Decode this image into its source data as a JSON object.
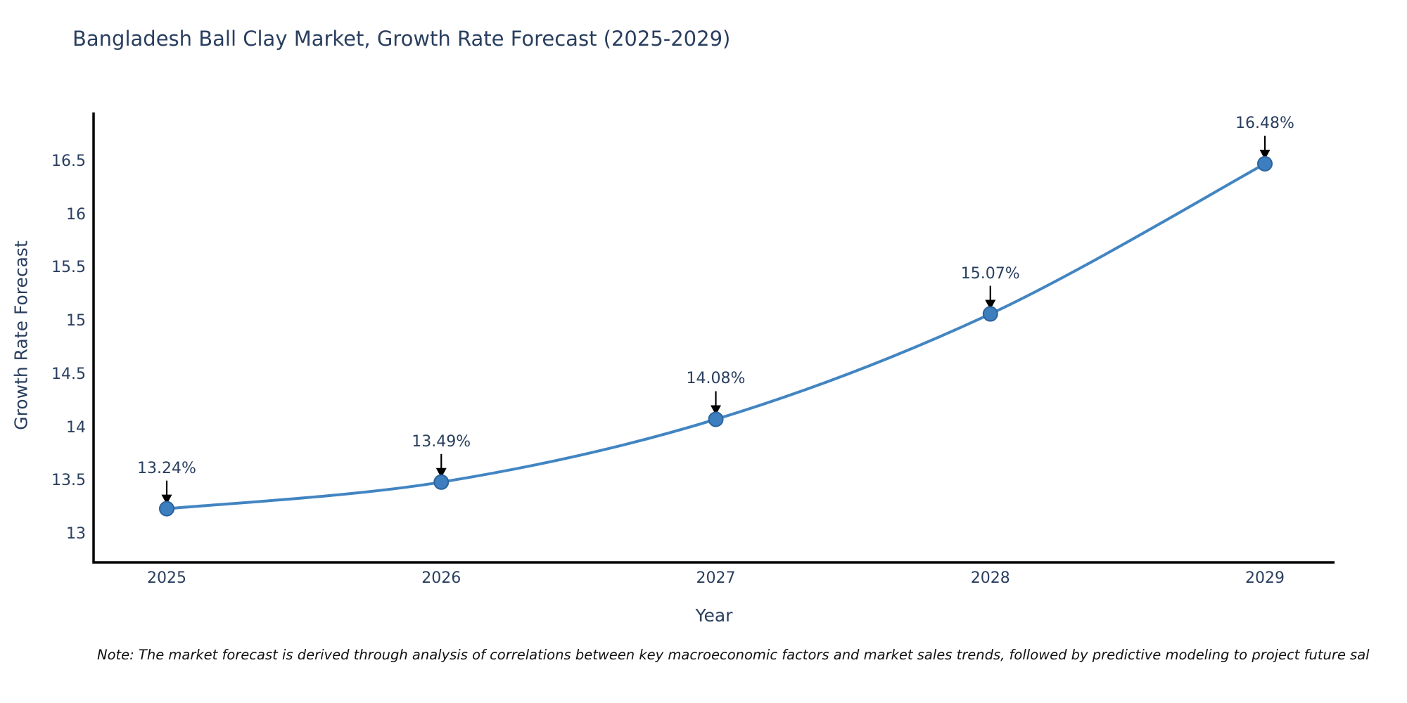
{
  "page": {
    "background": "#ffffff"
  },
  "chart_data": {
    "type": "line",
    "title": "Bangladesh Ball Clay Market, Growth Rate Forecast (2025-2029)",
    "xlabel": "Year",
    "ylabel": "Growth Rate Forecast",
    "x": [
      2025,
      2026,
      2027,
      2028,
      2029
    ],
    "series": [
      {
        "name": "Growth Rate Forecast",
        "values": [
          13.24,
          13.49,
          14.08,
          15.07,
          16.48
        ]
      }
    ],
    "point_labels": [
      "13.24%",
      "13.49%",
      "14.08%",
      "15.07%",
      "16.48%"
    ],
    "yticks": [
      13,
      13.5,
      14,
      14.5,
      15,
      15.5,
      16,
      16.5
    ],
    "ylim": [
      12.73,
      16.97
    ],
    "line_shape": "spline",
    "grid": false,
    "legend": "none",
    "colors": {
      "line": "#4285c2",
      "marker_fill": "#3d7ebf",
      "marker_edge": "#2b639e",
      "axis": "#000000",
      "arrow": "#000000",
      "text": "#2a3f5f",
      "note": "#111111"
    }
  },
  "note": "Note: The market forecast is derived through analysis of correlations between key macroeconomic factors and market sales trends, followed by predictive modeling to project future sal"
}
